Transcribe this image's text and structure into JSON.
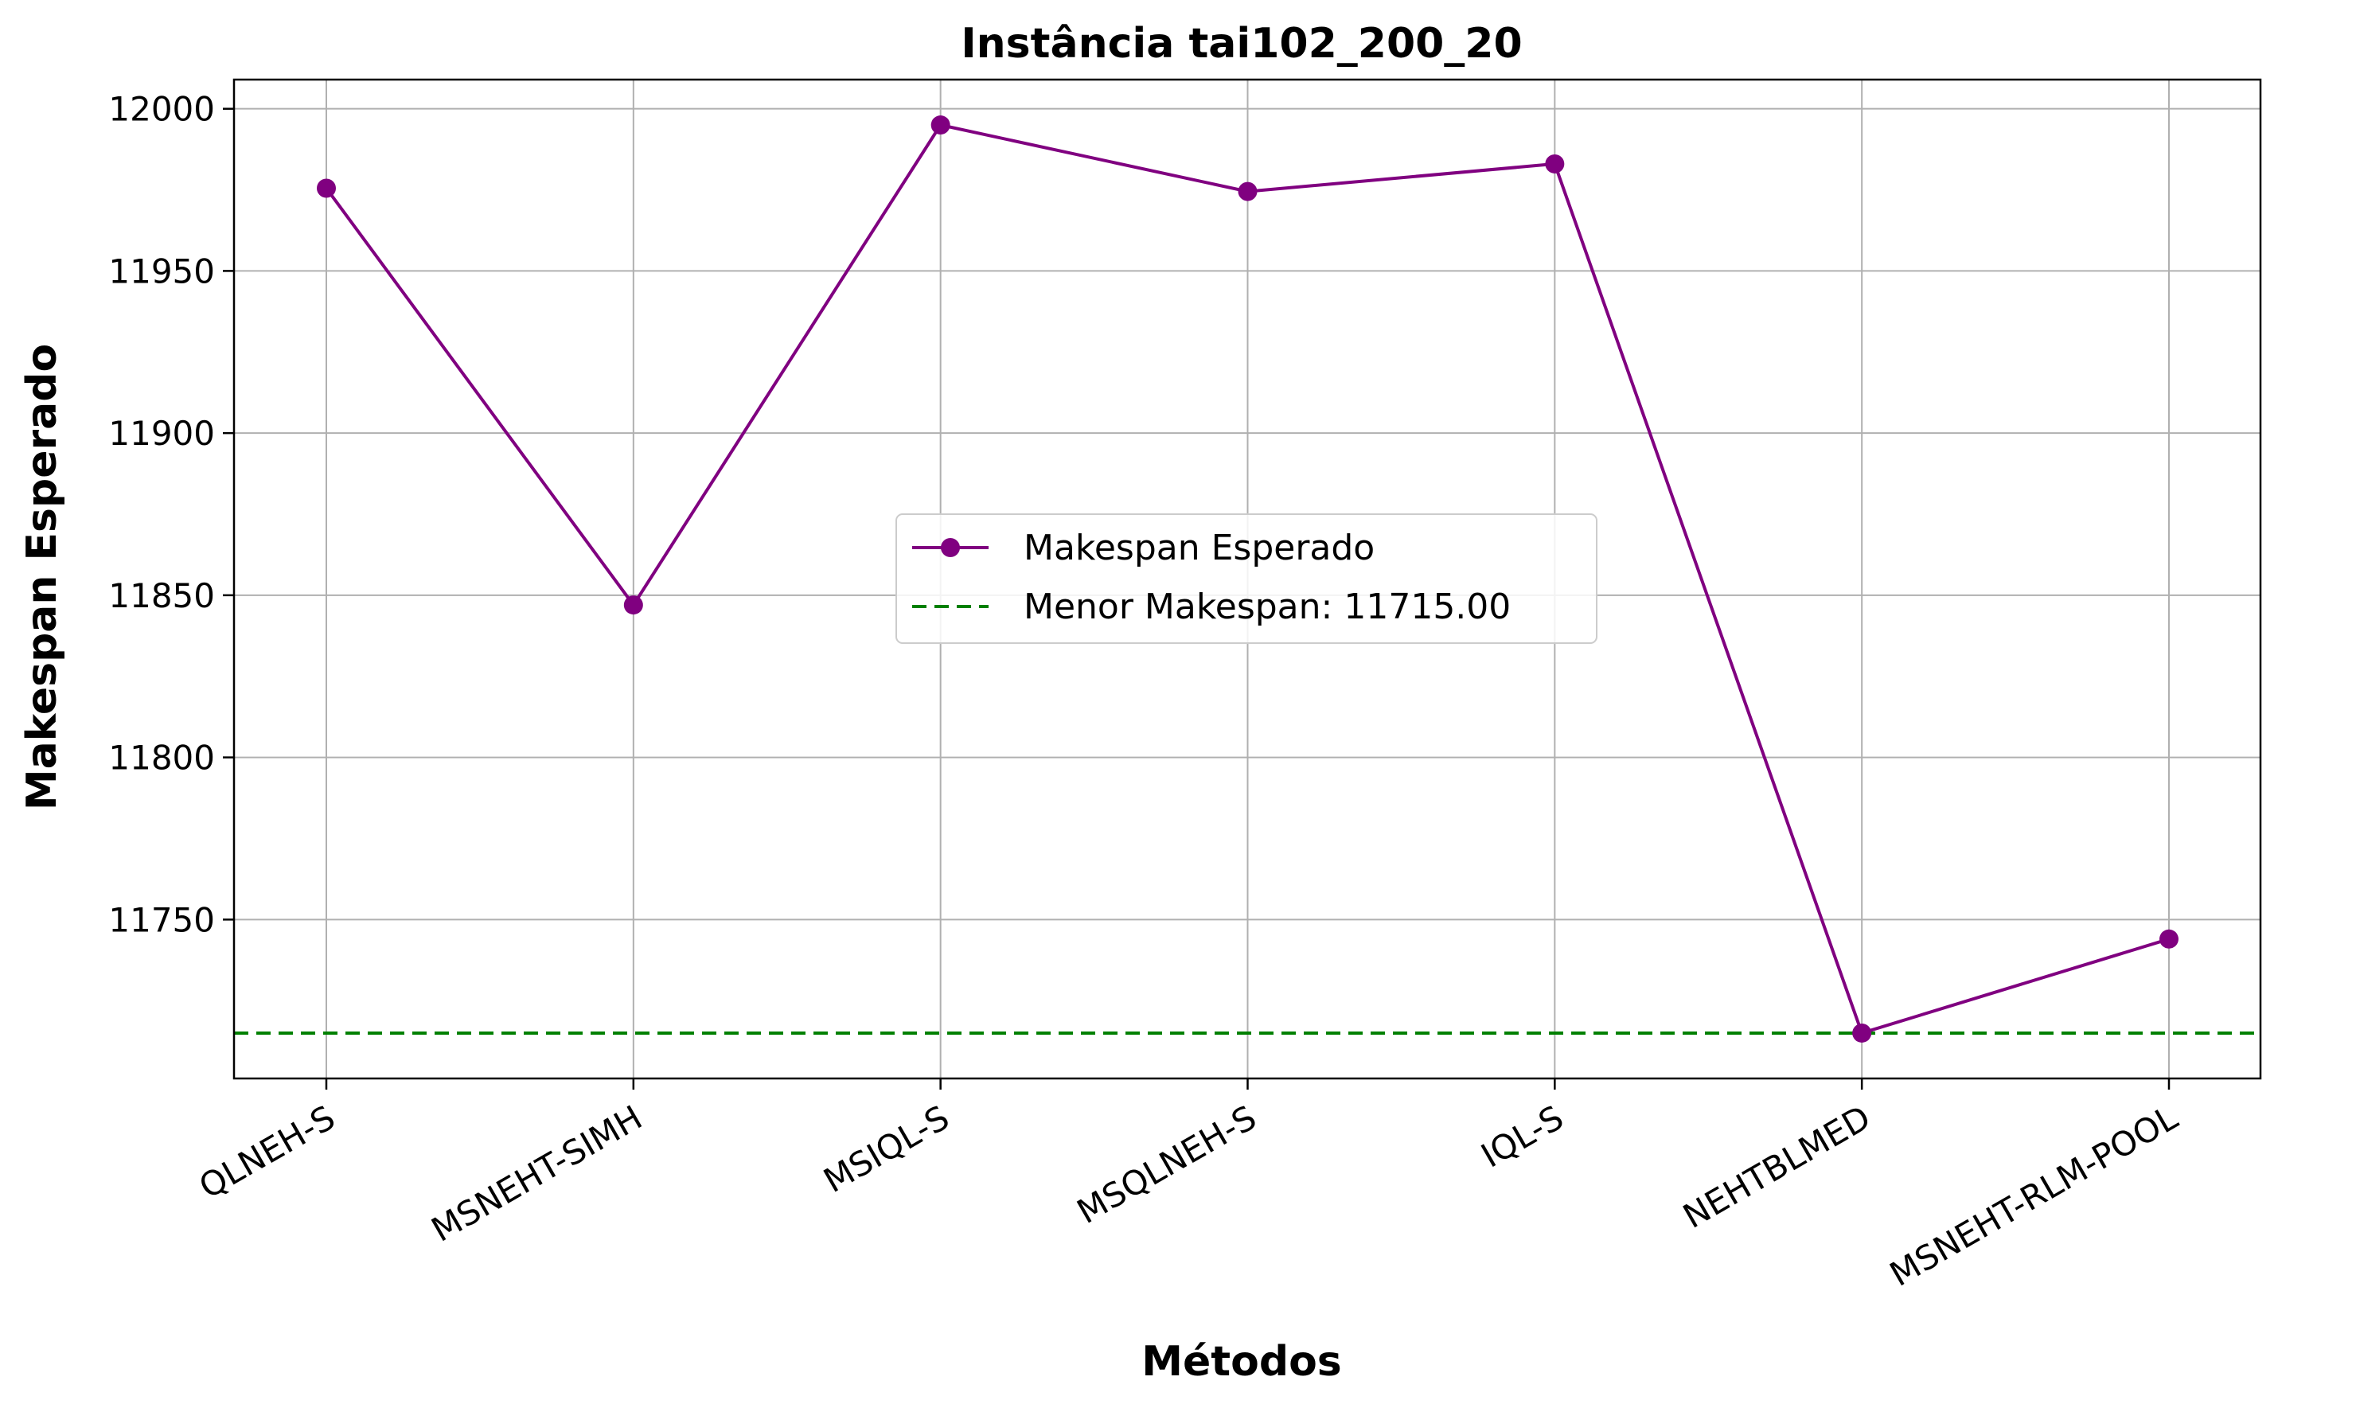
{
  "chart_data": {
    "type": "line",
    "title": "Instância tai102_200_20",
    "xlabel": "Métodos",
    "ylabel": "Makespan Esperado",
    "categories": [
      "QLNEH-S",
      "MSNEHT-SIMH",
      "MSIQL-S",
      "MSQLNEH-S",
      "IQL-S",
      "NEHTBLMED",
      "MSNEHT-RLM-POOL"
    ],
    "series": [
      {
        "name": "Makespan Esperado",
        "values": [
          11975.5,
          11847.0,
          11995.0,
          11974.5,
          11983.0,
          11715.0,
          11744.0
        ],
        "color": "#800080",
        "marker": "circle"
      }
    ],
    "reference_line": {
      "label": "Menor Makespan: 11715.00",
      "value": 11715.0,
      "color": "#008000",
      "style": "dashed"
    },
    "ylim": [
      11701,
      12009
    ],
    "yticks": [
      11750,
      11800,
      11850,
      11900,
      11950,
      12000
    ],
    "ytick_labels": [
      "11750",
      "11800",
      "11850",
      "11900",
      "11950",
      "12000"
    ],
    "grid": true,
    "legend_position": "center"
  }
}
